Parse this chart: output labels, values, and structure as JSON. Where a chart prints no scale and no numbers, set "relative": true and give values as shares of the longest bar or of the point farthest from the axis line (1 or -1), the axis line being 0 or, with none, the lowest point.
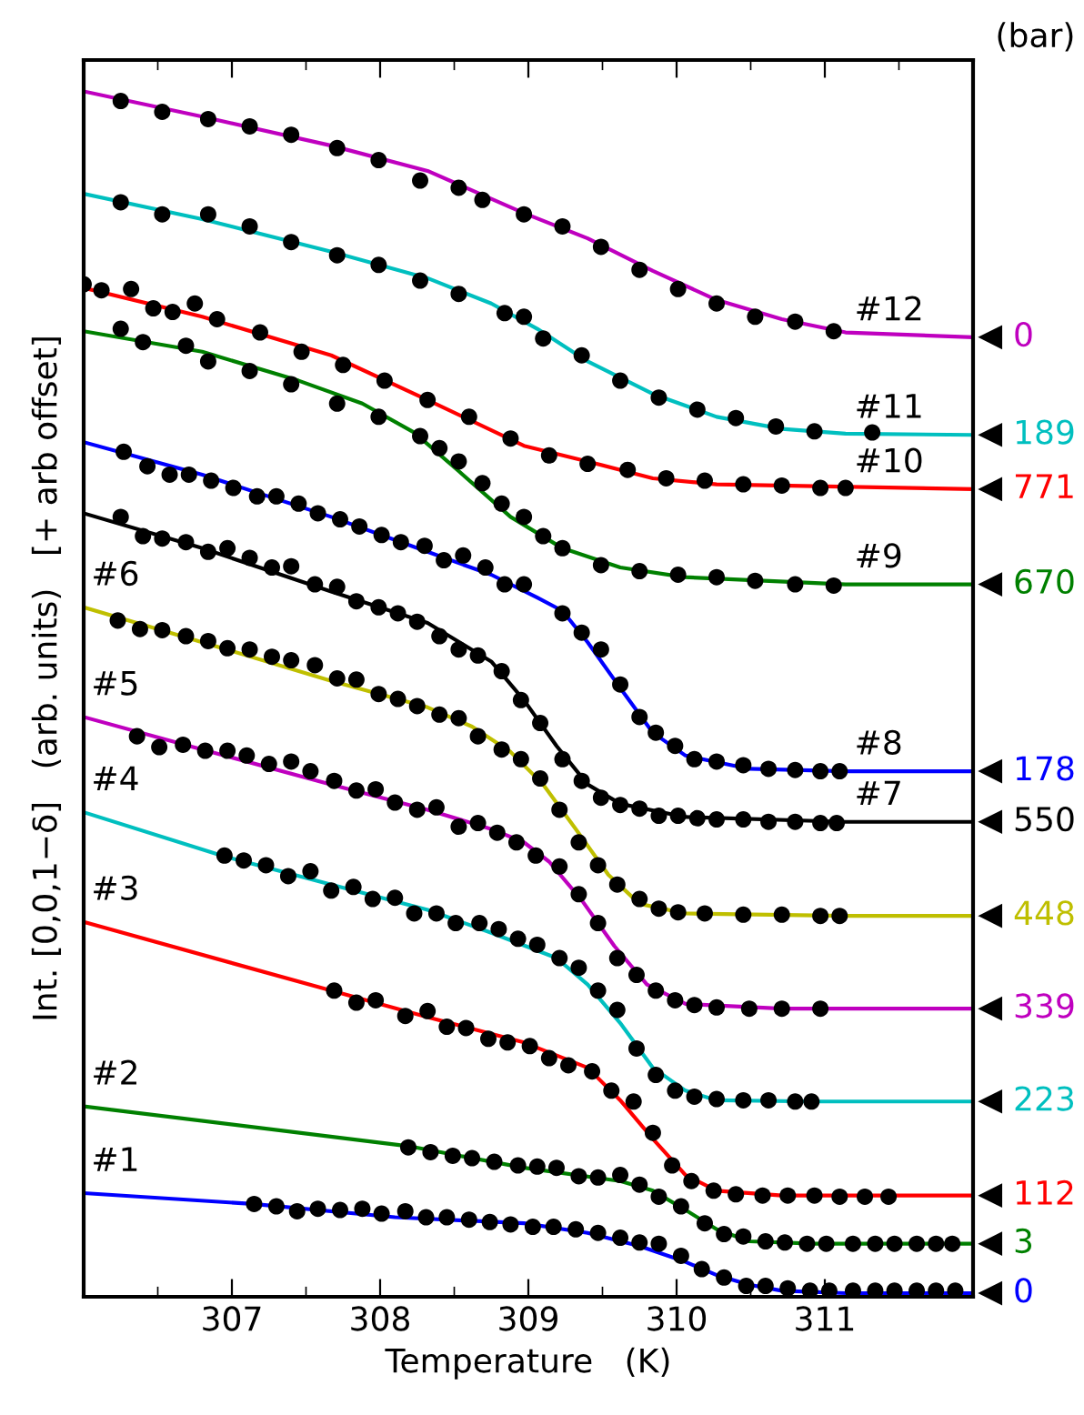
{
  "chart_data": {
    "type": "line",
    "relative": true,
    "xlabel": "Temperature   (K)",
    "ylabel": "Int. [0,0,1−δ]   (arb. units)   [+ arb offset]",
    "xlim": [
      306,
      312
    ],
    "xticks": [
      307,
      308,
      309,
      310,
      311
    ],
    "tick_labels": "x",
    "grid": false,
    "legend": false,
    "annotations": [
      "(bar)",
      "0",
      "3",
      "112",
      "223",
      "339",
      "448",
      "550",
      "178",
      "670",
      "771",
      "189",
      "0"
    ],
    "series": [
      {
        "name": "#1",
        "color": "#0000ff",
        "x": [
          306,
          307.14,
          308.1,
          308.97,
          309.4,
          309.75,
          310.06,
          310.27,
          310.49,
          310.71,
          311.14,
          312
        ],
        "values": [
          0.086,
          0.077,
          0.066,
          0.061,
          0.053,
          0.042,
          0.029,
          0.018,
          0.01,
          0.005,
          0.003,
          0.003
        ]
      },
      {
        "type": "scatter",
        "marker": "circle",
        "color": "#000000",
        "x": [
          307.15,
          307.3,
          307.44,
          307.58,
          307.73,
          307.88,
          308.01,
          308.17,
          308.31,
          308.45,
          308.6,
          308.74,
          308.88,
          309.03,
          309.17,
          309.32,
          309.47,
          309.62,
          309.75,
          309.88,
          310.03,
          310.17,
          310.32,
          310.47,
          310.6,
          310.75,
          310.9,
          311.03,
          311.19,
          311.34,
          311.47,
          311.62,
          311.75,
          311.88
        ],
        "values": [
          0.077,
          0.075,
          0.071,
          0.073,
          0.072,
          0.073,
          0.069,
          0.071,
          0.066,
          0.066,
          0.064,
          0.062,
          0.06,
          0.058,
          0.058,
          0.056,
          0.053,
          0.049,
          0.045,
          0.044,
          0.034,
          0.023,
          0.016,
          0.009,
          0.009,
          0.007,
          0.005,
          0.005,
          0.005,
          0.005,
          0.005,
          0.005,
          0.005,
          0.005
        ]
      },
      {
        "name": "#2",
        "color": "#008000",
        "x": [
          306,
          308.19,
          308.97,
          309.62,
          309.84,
          310.06,
          310.27,
          310.49,
          310.93,
          312
        ],
        "values": [
          0.158,
          0.125,
          0.107,
          0.096,
          0.088,
          0.072,
          0.056,
          0.046,
          0.044,
          0.044
        ]
      },
      {
        "type": "scatter",
        "marker": "circle",
        "color": "#000000",
        "x": [
          308.19,
          308.34,
          308.49,
          308.62,
          308.77,
          308.93,
          309.06,
          309.19,
          309.34,
          309.47,
          309.62,
          309.75,
          309.88,
          310.03,
          310.19,
          310.32,
          310.45,
          310.6,
          310.73,
          310.88,
          311.01,
          311.19,
          311.34,
          311.47,
          311.62,
          311.75,
          311.86
        ],
        "values": [
          0.124,
          0.12,
          0.117,
          0.115,
          0.112,
          0.109,
          0.108,
          0.107,
          0.1,
          0.099,
          0.101,
          0.093,
          0.083,
          0.075,
          0.061,
          0.052,
          0.05,
          0.046,
          0.045,
          0.044,
          0.044,
          0.044,
          0.044,
          0.044,
          0.044,
          0.044,
          0.044
        ]
      },
      {
        "name": "#3",
        "color": "#ff0000",
        "x": [
          306,
          307.67,
          308.32,
          308.97,
          309.4,
          309.62,
          309.84,
          310.06,
          310.27,
          310.71,
          312
        ],
        "values": [
          0.311,
          0.254,
          0.232,
          0.211,
          0.19,
          0.163,
          0.131,
          0.101,
          0.088,
          0.084,
          0.084
        ]
      },
      {
        "type": "scatter",
        "marker": "circle",
        "color": "#000000",
        "x": [
          307.69,
          307.84,
          307.97,
          308.17,
          308.32,
          308.45,
          308.58,
          308.73,
          308.86,
          309.01,
          309.14,
          309.27,
          309.43,
          309.56,
          309.71,
          309.84,
          309.97,
          310.1,
          310.25,
          310.4,
          310.58,
          310.75,
          310.93,
          311.1,
          311.27,
          311.43
        ],
        "values": [
          0.254,
          0.244,
          0.246,
          0.233,
          0.237,
          0.224,
          0.223,
          0.214,
          0.211,
          0.208,
          0.198,
          0.192,
          0.187,
          0.171,
          0.162,
          0.136,
          0.109,
          0.096,
          0.088,
          0.085,
          0.084,
          0.084,
          0.084,
          0.083,
          0.083,
          0.083
        ]
      },
      {
        "name": "#4",
        "color": "#00bfbf",
        "x": [
          306,
          306.93,
          307.67,
          308.32,
          308.75,
          309.19,
          309.4,
          309.62,
          309.84,
          310.06,
          310.27,
          310.93,
          312
        ],
        "values": [
          0.402,
          0.366,
          0.342,
          0.321,
          0.302,
          0.281,
          0.259,
          0.227,
          0.19,
          0.171,
          0.163,
          0.162,
          0.162
        ]
      },
      {
        "type": "scatter",
        "marker": "circle",
        "color": "#000000",
        "x": [
          306.95,
          307.08,
          307.23,
          307.38,
          307.53,
          307.67,
          307.82,
          307.95,
          308.1,
          308.23,
          308.38,
          308.51,
          308.67,
          308.8,
          308.93,
          309.06,
          309.21,
          309.34,
          309.47,
          309.6,
          309.73,
          309.86,
          309.99,
          310.12,
          310.27,
          310.45,
          310.62,
          310.8,
          310.91
        ],
        "values": [
          0.366,
          0.362,
          0.358,
          0.349,
          0.353,
          0.337,
          0.34,
          0.33,
          0.331,
          0.318,
          0.318,
          0.31,
          0.31,
          0.305,
          0.297,
          0.292,
          0.281,
          0.273,
          0.254,
          0.238,
          0.206,
          0.184,
          0.171,
          0.166,
          0.164,
          0.163,
          0.163,
          0.162,
          0.162
        ]
      },
      {
        "name": "#5",
        "color": "#bf00bf",
        "x": [
          306,
          306.8,
          307.67,
          308.32,
          308.75,
          308.97,
          309.14,
          309.36,
          309.58,
          309.8,
          310.06,
          310.71,
          312
        ],
        "values": [
          0.481,
          0.454,
          0.425,
          0.404,
          0.388,
          0.377,
          0.361,
          0.329,
          0.291,
          0.259,
          0.243,
          0.239,
          0.239
        ]
      },
      {
        "type": "scatter",
        "marker": "circle",
        "color": "#000000",
        "x": [
          306.36,
          306.51,
          306.67,
          306.82,
          306.97,
          307.1,
          307.25,
          307.4,
          307.53,
          307.69,
          307.84,
          307.97,
          308.1,
          308.25,
          308.38,
          308.53,
          308.66,
          308.79,
          308.92,
          309.05,
          309.21,
          309.34,
          309.47,
          309.6,
          309.73,
          309.86,
          309.99,
          310.12,
          310.27,
          310.49,
          310.71,
          310.97
        ],
        "values": [
          0.465,
          0.456,
          0.458,
          0.453,
          0.453,
          0.449,
          0.442,
          0.444,
          0.436,
          0.428,
          0.42,
          0.421,
          0.41,
          0.404,
          0.406,
          0.39,
          0.393,
          0.385,
          0.377,
          0.366,
          0.357,
          0.334,
          0.31,
          0.281,
          0.267,
          0.254,
          0.246,
          0.242,
          0.24,
          0.239,
          0.239,
          0.239
        ]
      },
      {
        "name": "#6",
        "color": "#bfbf00",
        "x": [
          306,
          306.8,
          307.67,
          308.32,
          308.62,
          308.88,
          309.1,
          309.32,
          309.54,
          309.75,
          310.06,
          311.14,
          312
        ],
        "values": [
          0.572,
          0.543,
          0.511,
          0.489,
          0.473,
          0.452,
          0.425,
          0.388,
          0.35,
          0.326,
          0.318,
          0.316,
          0.316
        ]
      },
      {
        "type": "scatter",
        "marker": "circle",
        "color": "#000000",
        "x": [
          306.23,
          306.38,
          306.53,
          306.69,
          306.84,
          306.97,
          307.12,
          307.27,
          307.4,
          307.56,
          307.71,
          307.84,
          307.99,
          308.12,
          308.25,
          308.4,
          308.53,
          308.66,
          308.82,
          308.95,
          309.08,
          309.21,
          309.34,
          309.47,
          309.6,
          309.75,
          309.88,
          310.01,
          310.19,
          310.45,
          310.71,
          310.97,
          311.1
        ],
        "values": [
          0.561,
          0.554,
          0.553,
          0.548,
          0.544,
          0.538,
          0.537,
          0.531,
          0.528,
          0.524,
          0.513,
          0.512,
          0.5,
          0.496,
          0.49,
          0.483,
          0.48,
          0.465,
          0.454,
          0.446,
          0.43,
          0.404,
          0.377,
          0.358,
          0.342,
          0.33,
          0.322,
          0.319,
          0.318,
          0.317,
          0.317,
          0.316,
          0.316
        ]
      },
      {
        "name": "#7",
        "color": "#000000",
        "x": [
          306,
          306.8,
          307.67,
          308.32,
          308.75,
          308.97,
          309.19,
          309.4,
          309.62,
          310.06,
          311.14,
          312
        ],
        "values": [
          0.65,
          0.621,
          0.585,
          0.559,
          0.527,
          0.495,
          0.457,
          0.425,
          0.409,
          0.398,
          0.394,
          0.394
        ]
      },
      {
        "type": "scatter",
        "marker": "circle",
        "color": "#000000",
        "x": [
          306.25,
          306.4,
          306.53,
          306.69,
          306.84,
          306.97,
          307.12,
          307.27,
          307.4,
          307.56,
          307.71,
          307.84,
          307.99,
          308.12,
          308.25,
          308.4,
          308.53,
          308.66,
          308.82,
          308.95,
          309.08,
          309.23,
          309.36,
          309.49,
          309.62,
          309.75,
          309.88,
          310.01,
          310.14,
          310.27,
          310.45,
          310.62,
          310.8,
          310.97,
          311.08
        ],
        "values": [
          0.647,
          0.631,
          0.629,
          0.626,
          0.618,
          0.621,
          0.613,
          0.605,
          0.606,
          0.591,
          0.589,
          0.577,
          0.572,
          0.567,
          0.56,
          0.548,
          0.537,
          0.532,
          0.519,
          0.495,
          0.476,
          0.446,
          0.428,
          0.414,
          0.408,
          0.405,
          0.399,
          0.399,
          0.397,
          0.396,
          0.396,
          0.394,
          0.394,
          0.393,
          0.393
        ]
      },
      {
        "name": "#8",
        "color": "#0000ff",
        "x": [
          306,
          306.8,
          307.67,
          308.32,
          308.75,
          309.06,
          309.23,
          309.4,
          309.62,
          309.84,
          310.06,
          310.49,
          311.14,
          312
        ],
        "values": [
          0.709,
          0.682,
          0.647,
          0.618,
          0.599,
          0.58,
          0.569,
          0.543,
          0.505,
          0.468,
          0.449,
          0.438,
          0.436,
          0.436
        ]
      },
      {
        "type": "scatter",
        "marker": "circle",
        "color": "#000000",
        "x": [
          306.27,
          306.43,
          306.58,
          306.71,
          306.86,
          307.01,
          307.17,
          307.3,
          307.45,
          307.58,
          307.73,
          307.86,
          308.01,
          308.14,
          308.3,
          308.43,
          308.56,
          308.71,
          308.84,
          308.97,
          309.23,
          309.36,
          309.49,
          309.62,
          309.75,
          309.86,
          309.99,
          310.12,
          310.27,
          310.45,
          310.62,
          310.8,
          310.97,
          311.1
        ],
        "values": [
          0.701,
          0.689,
          0.682,
          0.682,
          0.677,
          0.671,
          0.664,
          0.664,
          0.658,
          0.65,
          0.645,
          0.639,
          0.632,
          0.626,
          0.623,
          0.611,
          0.615,
          0.605,
          0.591,
          0.591,
          0.567,
          0.551,
          0.537,
          0.508,
          0.481,
          0.468,
          0.457,
          0.446,
          0.444,
          0.441,
          0.438,
          0.437,
          0.436,
          0.436
        ]
      },
      {
        "name": "#9",
        "color": "#008000",
        "x": [
          306,
          306.8,
          307.45,
          307.88,
          308.23,
          308.53,
          308.88,
          309.23,
          309.62,
          310.05,
          311.14,
          312
        ],
        "values": [
          0.801,
          0.784,
          0.76,
          0.741,
          0.717,
          0.685,
          0.647,
          0.621,
          0.605,
          0.597,
          0.591,
          0.591
        ]
      },
      {
        "type": "scatter",
        "marker": "circle",
        "color": "#000000",
        "x": [
          306.25,
          306.4,
          306.69,
          306.84,
          307.12,
          307.4,
          307.71,
          307.99,
          308.27,
          308.4,
          308.53,
          308.69,
          308.82,
          308.97,
          309.1,
          309.23,
          309.49,
          309.75,
          310.01,
          310.27,
          310.53,
          310.8,
          311.06
        ],
        "values": [
          0.803,
          0.792,
          0.789,
          0.776,
          0.768,
          0.757,
          0.741,
          0.73,
          0.714,
          0.704,
          0.693,
          0.675,
          0.658,
          0.647,
          0.631,
          0.621,
          0.607,
          0.602,
          0.599,
          0.597,
          0.594,
          0.591,
          0.59
        ]
      },
      {
        "name": "#10",
        "color": "#ff0000",
        "x": [
          306,
          306.8,
          307.67,
          308.32,
          308.97,
          309.4,
          309.84,
          310.27,
          312
        ],
        "values": [
          0.837,
          0.813,
          0.781,
          0.744,
          0.706,
          0.693,
          0.679,
          0.674,
          0.67
        ]
      },
      {
        "type": "scatter",
        "marker": "circle",
        "color": "#000000",
        "x": [
          306.0,
          306.12,
          306.32,
          306.47,
          306.6,
          306.75,
          306.9,
          307.19,
          307.47,
          307.75,
          308.03,
          308.32,
          308.6,
          308.88,
          309.14,
          309.4,
          309.67,
          309.93,
          310.19,
          310.45,
          310.71,
          310.97,
          311.14
        ],
        "values": [
          0.84,
          0.835,
          0.836,
          0.82,
          0.817,
          0.824,
          0.811,
          0.8,
          0.784,
          0.773,
          0.76,
          0.744,
          0.73,
          0.712,
          0.698,
          0.691,
          0.686,
          0.679,
          0.677,
          0.674,
          0.673,
          0.671,
          0.671
        ]
      },
      {
        "name": "#11",
        "color": "#00bfbf",
        "x": [
          306,
          306.8,
          307.67,
          308.32,
          308.75,
          309.06,
          309.4,
          309.84,
          310.27,
          310.71,
          311.14,
          312
        ],
        "values": [
          0.915,
          0.894,
          0.867,
          0.845,
          0.824,
          0.803,
          0.776,
          0.749,
          0.73,
          0.72,
          0.716,
          0.715
        ]
      },
      {
        "type": "scatter",
        "marker": "circle",
        "color": "#000000",
        "x": [
          306.25,
          306.53,
          306.84,
          307.12,
          307.4,
          307.71,
          307.99,
          308.27,
          308.53,
          308.84,
          308.97,
          309.1,
          309.36,
          309.62,
          309.88,
          310.14,
          310.4,
          310.67,
          310.93,
          311.32
        ],
        "values": [
          0.908,
          0.898,
          0.898,
          0.888,
          0.875,
          0.864,
          0.856,
          0.843,
          0.832,
          0.816,
          0.813,
          0.795,
          0.781,
          0.76,
          0.746,
          0.736,
          0.729,
          0.722,
          0.718,
          0.717
        ]
      },
      {
        "name": "#12",
        "color": "#bf00bf",
        "x": [
          306,
          306.8,
          307.67,
          308.32,
          308.97,
          309.4,
          309.84,
          310.27,
          310.71,
          311.14,
          312
        ],
        "values": [
          1.0,
          0.979,
          0.955,
          0.934,
          0.899,
          0.878,
          0.851,
          0.827,
          0.811,
          0.8,
          0.796
        ]
      },
      {
        "type": "scatter",
        "marker": "circle",
        "color": "#000000",
        "x": [
          306.25,
          306.53,
          306.84,
          307.12,
          307.4,
          307.71,
          307.99,
          308.27,
          308.53,
          308.69,
          308.97,
          309.23,
          309.49,
          309.75,
          310.01,
          310.27,
          310.53,
          310.8,
          311.06
        ],
        "values": [
          0.992,
          0.983,
          0.977,
          0.971,
          0.964,
          0.953,
          0.943,
          0.926,
          0.92,
          0.91,
          0.898,
          0.888,
          0.871,
          0.852,
          0.836,
          0.824,
          0.813,
          0.809,
          0.801
        ]
      }
    ]
  }
}
